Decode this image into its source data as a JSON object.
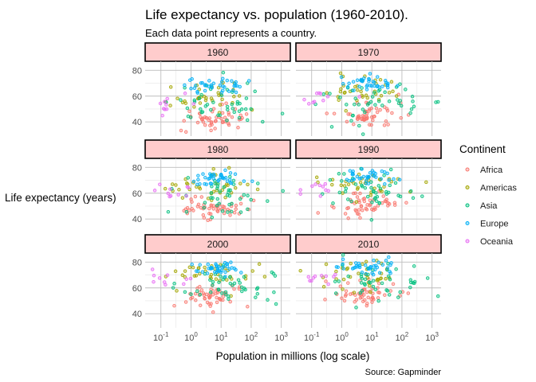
{
  "chart_data": {
    "type": "scatter",
    "title": "Life expectancy vs. population (1960-2010).",
    "subtitle": "Each data point represents a country.",
    "xlabel": "Population in millions (log scale)",
    "ylabel": "Life expectancy (years)",
    "caption": "Source: Gapminder",
    "x_scale": "log10",
    "x_ticks": [
      0.1,
      1,
      10,
      100,
      1000
    ],
    "x_tick_labels": [
      {
        "base": "10",
        "exp": "-1"
      },
      {
        "base": "10",
        "exp": "0"
      },
      {
        "base": "10",
        "exp": "1"
      },
      {
        "base": "10",
        "exp": "2"
      },
      {
        "base": "10",
        "exp": "3"
      }
    ],
    "xlim": [
      0.03,
      2000
    ],
    "y_ticks": [
      40,
      60,
      80
    ],
    "ylim": [
      29,
      87
    ],
    "grid": true,
    "legend": {
      "title": "Continent",
      "placement": "right",
      "entries": [
        "Africa",
        "Americas",
        "Asia",
        "Europe",
        "Oceania"
      ]
    },
    "colors": {
      "Africa": "#F8766D",
      "Americas": "#A3A500",
      "Asia": "#00BF7D",
      "Europe": "#00B0F6",
      "Oceania": "#E76BF3"
    },
    "strip_fill": "#FFCCCC",
    "panels": [
      {
        "label": "1960",
        "seed": 1960,
        "shift": 0
      },
      {
        "label": "1970",
        "seed": 1970,
        "shift": 3
      },
      {
        "label": "1980",
        "seed": 1980,
        "shift": 6
      },
      {
        "label": "1990",
        "seed": 1990,
        "shift": 8
      },
      {
        "label": "2000",
        "seed": 2000,
        "shift": 10
      },
      {
        "label": "2010",
        "seed": 2010,
        "shift": 12
      }
    ],
    "groups": [
      {
        "continent": "Africa",
        "count": 52,
        "logpop_mean": 0.8,
        "logpop_sd": 0.55,
        "life_mean": 43,
        "life_sd": 5
      },
      {
        "continent": "Americas",
        "count": 35,
        "logpop_mean": 0.7,
        "logpop_sd": 0.75,
        "life_mean": 59,
        "life_sd": 6
      },
      {
        "continent": "Asia",
        "count": 45,
        "logpop_mean": 1.1,
        "logpop_sd": 0.85,
        "life_mean": 53,
        "life_sd": 8
      },
      {
        "continent": "Europe",
        "count": 38,
        "logpop_mean": 0.9,
        "logpop_sd": 0.5,
        "life_mean": 68,
        "life_sd": 3
      },
      {
        "continent": "Oceania",
        "count": 10,
        "logpop_mean": -0.8,
        "logpop_sd": 0.4,
        "life_mean": 55,
        "life_sd": 4
      }
    ]
  }
}
